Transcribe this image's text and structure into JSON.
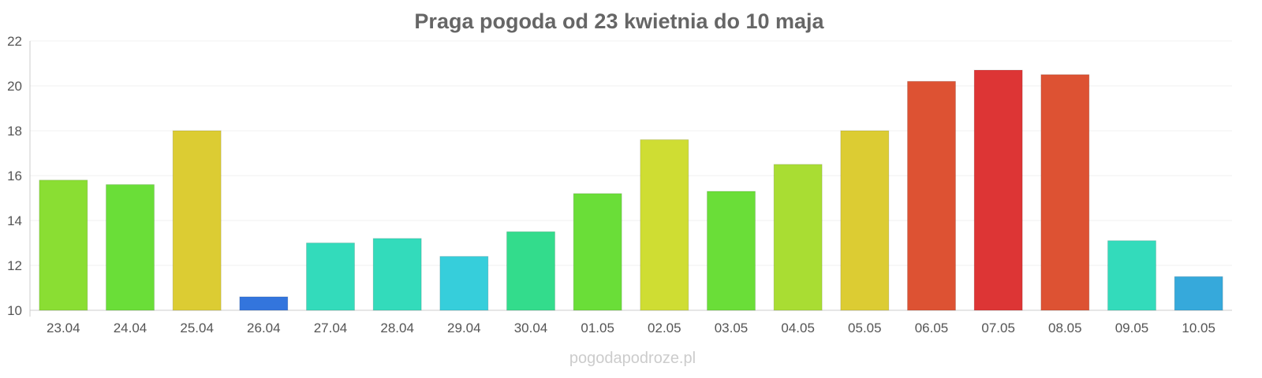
{
  "chart_data": {
    "type": "bar",
    "title": "Praga pogoda od 23 kwietnia do 10 maja",
    "xlabel": "",
    "ylabel": "",
    "ylim": [
      10,
      22
    ],
    "yticks": [
      10,
      12,
      14,
      16,
      18,
      20,
      22
    ],
    "grid": true,
    "categories": [
      "23.04",
      "24.04",
      "25.04",
      "26.04",
      "27.04",
      "28.04",
      "29.04",
      "30.04",
      "01.05",
      "02.05",
      "03.05",
      "04.05",
      "05.05",
      "06.05",
      "07.05",
      "08.05",
      "09.05",
      "10.05"
    ],
    "values": [
      15.8,
      15.6,
      18.0,
      10.6,
      13.0,
      13.2,
      12.4,
      13.5,
      15.2,
      17.6,
      15.3,
      16.5,
      18.0,
      20.2,
      20.7,
      20.5,
      13.1,
      11.5
    ],
    "colors": [
      "#8ade33",
      "#6ade38",
      "#dccc33",
      "#3375dd",
      "#33dbbb",
      "#33dbbb",
      "#36cedb",
      "#33dc8c",
      "#6ade38",
      "#cfdd33",
      "#6ade38",
      "#a9dd33",
      "#dccc33",
      "#dd5233",
      "#dd3535",
      "#dd5233",
      "#33dbbb",
      "#36a9db"
    ]
  },
  "watermark": "pogodapodroze.pl"
}
